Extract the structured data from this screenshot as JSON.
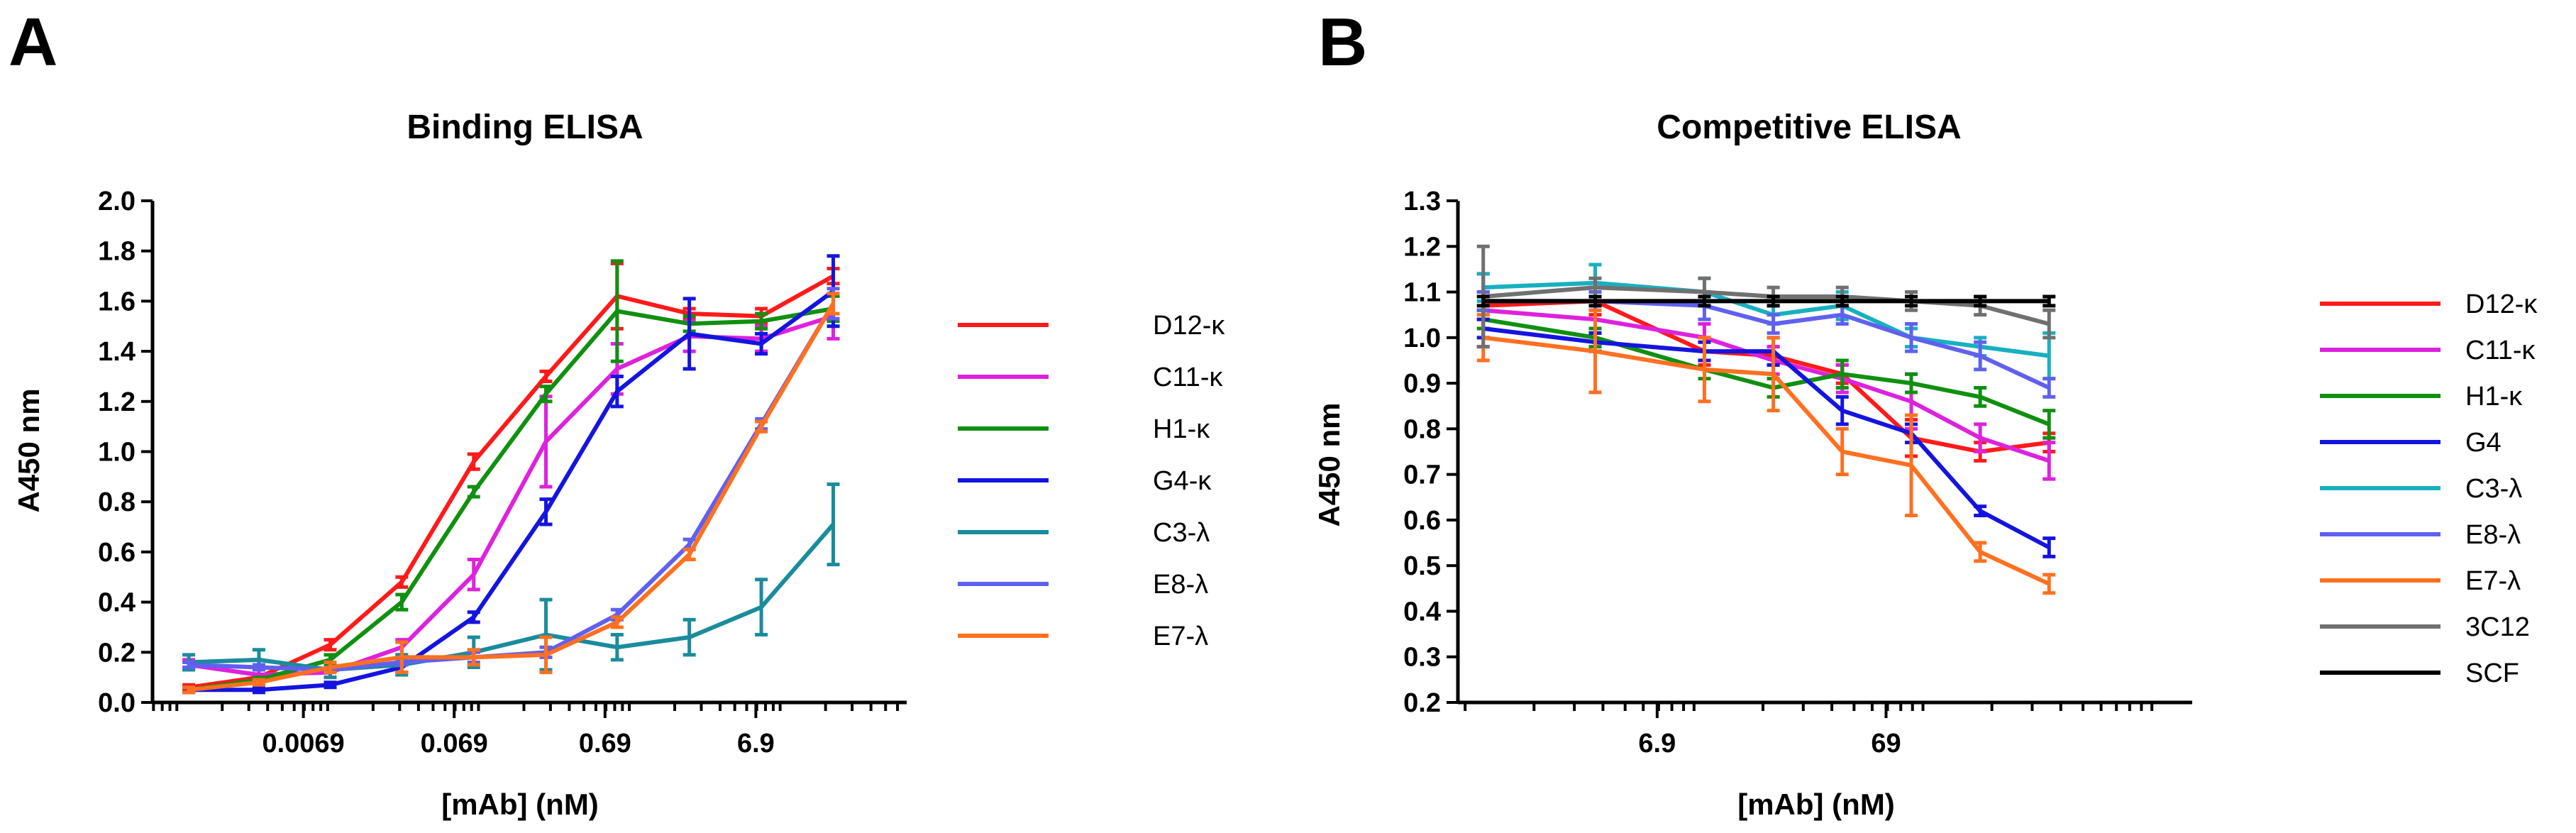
{
  "panels": [
    {
      "letter": "A",
      "chart_data": {
        "type": "line",
        "title": "Binding ELISA",
        "xlabel": "[mAb] (nM)",
        "ylabel": "A450 nm",
        "xscale": "log10",
        "xlim": [
          0.00069,
          69
        ],
        "ylim": [
          0,
          2.0
        ],
        "yticks": [
          0.0,
          0.2,
          0.4,
          0.6,
          0.8,
          1.0,
          1.2,
          1.4,
          1.6,
          1.8,
          2.0
        ],
        "ytick_labels": [
          "0.0",
          "0.2",
          "0.4",
          "0.6",
          "0.8",
          "1.0",
          "1.2",
          "1.4",
          "1.6",
          "1.8",
          "2.0"
        ],
        "xticks": [
          0.0069,
          0.069,
          0.69,
          6.9
        ],
        "xtick_labels": [
          "0.0069",
          "0.069",
          "0.69",
          "6.9"
        ],
        "x": [
          0.0012,
          0.0035,
          0.0104,
          0.031,
          0.093,
          0.28,
          0.83,
          2.5,
          7.5,
          22.5
        ],
        "legend_position": "right",
        "series": [
          {
            "name": "D12-κ",
            "color": "#ff1a1a",
            "values": [
              0.06,
              0.1,
              0.23,
              0.48,
              0.96,
              1.3,
              1.62,
              1.55,
              1.54,
              1.7
            ],
            "errors": [
              0.01,
              0.01,
              0.02,
              0.02,
              0.03,
              0.02,
              0.13,
              0.02,
              0.03,
              0.03
            ]
          },
          {
            "name": "C11-κ",
            "color": "#dd22dd",
            "values": [
              0.15,
              0.11,
              0.12,
              0.22,
              0.51,
              1.04,
              1.33,
              1.46,
              1.45,
              1.54
            ],
            "errors": [
              0.02,
              0.02,
              0.02,
              0.03,
              0.06,
              0.18,
              0.1,
              0.06,
              0.05,
              0.09
            ]
          },
          {
            "name": "H1-κ",
            "color": "#109010",
            "values": [
              0.05,
              0.09,
              0.17,
              0.4,
              0.84,
              1.23,
              1.56,
              1.51,
              1.52,
              1.57
            ],
            "errors": [
              0.01,
              0.01,
              0.02,
              0.03,
              0.02,
              0.03,
              0.2,
              0.03,
              0.03,
              0.05
            ]
          },
          {
            "name": "G4-κ",
            "color": "#1414e0",
            "values": [
              0.05,
              0.05,
              0.07,
              0.14,
              0.34,
              0.76,
              1.24,
              1.47,
              1.43,
              1.64
            ],
            "errors": [
              0.01,
              0.01,
              0.01,
              0.02,
              0.02,
              0.05,
              0.06,
              0.14,
              0.04,
              0.14
            ]
          },
          {
            "name": "C3-λ",
            "color": "#1a8c9c",
            "values": [
              0.16,
              0.17,
              0.13,
              0.15,
              0.2,
              0.27,
              0.22,
              0.26,
              0.38,
              0.71
            ],
            "errors": [
              0.03,
              0.04,
              0.03,
              0.04,
              0.06,
              0.14,
              0.05,
              0.07,
              0.11,
              0.16
            ]
          },
          {
            "name": "E8-λ",
            "color": "#6060f0",
            "values": [
              0.15,
              0.14,
              0.13,
              0.16,
              0.18,
              0.2,
              0.35,
              0.63,
              1.11,
              1.59
            ],
            "errors": [
              0.01,
              0.01,
              0.01,
              0.01,
              0.02,
              0.02,
              0.02,
              0.02,
              0.02,
              0.06
            ]
          },
          {
            "name": "E7-λ",
            "color": "#ff7020",
            "values": [
              0.05,
              0.08,
              0.14,
              0.18,
              0.18,
              0.19,
              0.32,
              0.59,
              1.1,
              1.59
            ],
            "errors": [
              0.01,
              0.01,
              0.02,
              0.06,
              0.03,
              0.07,
              0.02,
              0.02,
              0.02,
              0.04
            ]
          }
        ]
      }
    },
    {
      "letter": "B",
      "chart_data": {
        "type": "line",
        "title": "Competitive ELISA",
        "xlabel": "[mAb] (nM)",
        "ylabel": "A450 nm",
        "xscale": "log10",
        "xlim": [
          0.93,
          1500
        ],
        "ylim": [
          0.2,
          1.3
        ],
        "yticks": [
          0.2,
          0.3,
          0.4,
          0.5,
          0.6,
          0.7,
          0.8,
          0.9,
          1.0,
          1.1,
          1.2,
          1.3
        ],
        "ytick_labels": [
          "0.2",
          "0.3",
          "0.4",
          "0.5",
          "0.6",
          "0.7",
          "0.8",
          "0.9",
          "1.0",
          "1.1",
          "1.2",
          "1.3"
        ],
        "xticks": [
          6.9,
          69
        ],
        "xtick_labels": [
          "6.9",
          "69"
        ],
        "x": [
          1.2,
          3.7,
          11.1,
          22.2,
          44.4,
          88.9,
          177.8,
          355.6
        ],
        "legend_position": "right",
        "series": [
          {
            "name": "D12-κ",
            "color": "#ff1a1a",
            "values": [
              1.07,
              1.08,
              0.97,
              0.96,
              0.92,
              0.78,
              0.75,
              0.77
            ],
            "errors": [
              0.03,
              0.03,
              0.03,
              0.02,
              0.02,
              0.04,
              0.02,
              0.02
            ]
          },
          {
            "name": "C11-κ",
            "color": "#dd22dd",
            "values": [
              1.06,
              1.04,
              1.0,
              0.95,
              0.91,
              0.86,
              0.78,
              0.73
            ],
            "errors": [
              0.08,
              0.03,
              0.03,
              0.03,
              0.03,
              0.06,
              0.03,
              0.04
            ]
          },
          {
            "name": "H1-κ",
            "color": "#109010",
            "values": [
              1.04,
              1.0,
              0.93,
              0.89,
              0.92,
              0.9,
              0.87,
              0.81
            ],
            "errors": [
              0.02,
              0.02,
              0.02,
              0.02,
              0.03,
              0.02,
              0.02,
              0.03
            ]
          },
          {
            "name": "G4",
            "color": "#1414e0",
            "values": [
              1.02,
              0.99,
              0.97,
              0.97,
              0.84,
              0.79,
              0.62,
              0.54
            ],
            "errors": [
              0.02,
              0.02,
              0.02,
              0.03,
              0.03,
              0.02,
              0.01,
              0.02
            ]
          },
          {
            "name": "C3-λ",
            "color": "#18b0c0",
            "values": [
              1.11,
              1.12,
              1.1,
              1.05,
              1.07,
              1.0,
              0.98,
              0.96
            ],
            "errors": [
              0.03,
              0.04,
              0.03,
              0.02,
              0.03,
              0.02,
              0.02,
              0.05
            ]
          },
          {
            "name": "E8-λ",
            "color": "#6060f0",
            "values": [
              1.08,
              1.08,
              1.07,
              1.03,
              1.05,
              1.0,
              0.96,
              0.89
            ],
            "errors": [
              0.02,
              0.02,
              0.03,
              0.02,
              0.02,
              0.03,
              0.03,
              0.02
            ]
          },
          {
            "name": "E7-λ",
            "color": "#ff7020",
            "values": [
              1.0,
              0.97,
              0.93,
              0.92,
              0.75,
              0.72,
              0.53,
              0.46
            ],
            "errors": [
              0.05,
              0.09,
              0.07,
              0.08,
              0.05,
              0.11,
              0.02,
              0.02
            ]
          },
          {
            "name": "3C12",
            "color": "#707070",
            "values": [
              1.09,
              1.11,
              1.1,
              1.09,
              1.09,
              1.08,
              1.07,
              1.03
            ],
            "errors": [
              0.11,
              0.02,
              0.03,
              0.02,
              0.02,
              0.02,
              0.02,
              0.03
            ]
          },
          {
            "name": "SCF",
            "color": "#000000",
            "values": [
              1.08,
              1.08,
              1.08,
              1.08,
              1.08,
              1.08,
              1.08,
              1.08
            ],
            "errors": [
              0.01,
              0.01,
              0.01,
              0.01,
              0.01,
              0.01,
              0.01,
              0.01
            ]
          }
        ]
      }
    }
  ]
}
